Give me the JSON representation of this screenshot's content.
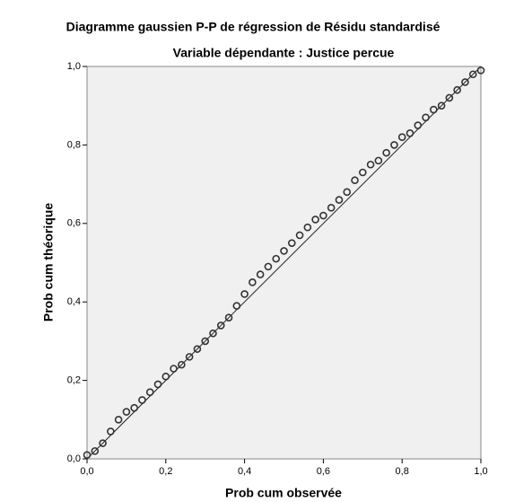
{
  "chart_data": {
    "type": "scatter",
    "title": "Diagramme gaussien P-P de régression de Résidu standardisé",
    "subtitle": "Variable dépendante : Justice percue",
    "xlabel": "Prob cum observée",
    "ylabel": "Prob cum théorique",
    "color": "#333333",
    "x": [
      0,
      0.02,
      0.04,
      0.06,
      0.08,
      0.1,
      0.12,
      0.14,
      0.16,
      0.18,
      0.2,
      0.22,
      0.24,
      0.26,
      0.28,
      0.3,
      0.32,
      0.34,
      0.36,
      0.38,
      0.4,
      0.42,
      0.44,
      0.46,
      0.48,
      0.5,
      0.52,
      0.54,
      0.56,
      0.58,
      0.6,
      0.62,
      0.64,
      0.66,
      0.68,
      0.7,
      0.72,
      0.74,
      0.76,
      0.78,
      0.8,
      0.82,
      0.84,
      0.86,
      0.88,
      0.9,
      0.92,
      0.94,
      0.96,
      0.98,
      1
    ],
    "values": [
      0.01,
      0.02,
      0.04,
      0.07,
      0.1,
      0.12,
      0.13,
      0.15,
      0.17,
      0.19,
      0.21,
      0.23,
      0.24,
      0.26,
      0.28,
      0.3,
      0.32,
      0.34,
      0.36,
      0.39,
      0.42,
      0.45,
      0.47,
      0.49,
      0.51,
      0.53,
      0.55,
      0.57,
      0.59,
      0.61,
      0.62,
      0.64,
      0.66,
      0.68,
      0.71,
      0.73,
      0.75,
      0.76,
      0.78,
      0.8,
      0.82,
      0.83,
      0.85,
      0.87,
      0.89,
      0.9,
      0.92,
      0.94,
      0.96,
      0.98,
      0.99
    ],
    "xlim": [
      0,
      1
    ],
    "ylim": [
      0,
      1
    ],
    "xticks": [
      {
        "value": 0,
        "label": "0,0"
      },
      {
        "value": 0.2,
        "label": "0,2"
      },
      {
        "value": 0.4,
        "label": "0,4"
      },
      {
        "value": 0.6,
        "label": "0,6"
      },
      {
        "value": 0.8,
        "label": "0,8"
      },
      {
        "value": 1,
        "label": "1,0"
      }
    ],
    "yticks": [
      {
        "value": 0,
        "label": "0,0"
      },
      {
        "value": 0.2,
        "label": "0,2"
      },
      {
        "value": 0.4,
        "label": "0,4"
      },
      {
        "value": 0.6,
        "label": "0,6"
      },
      {
        "value": 0.8,
        "label": "0,8"
      },
      {
        "value": 1,
        "label": "1,0"
      }
    ]
  }
}
